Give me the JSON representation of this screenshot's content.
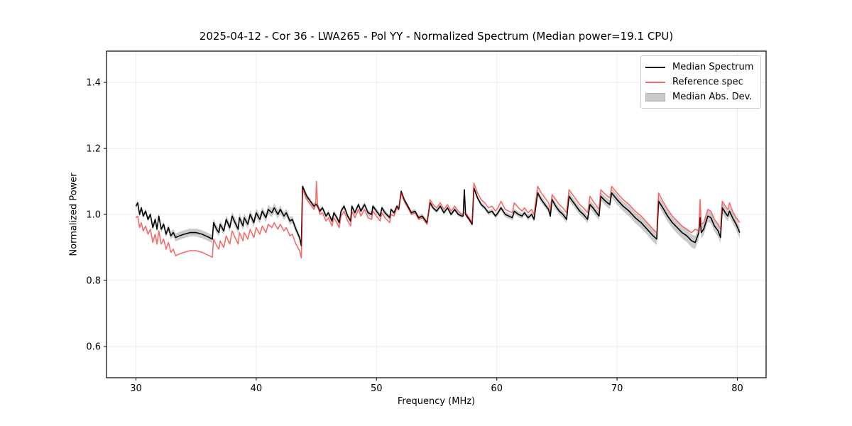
{
  "chart_data": {
    "type": "line",
    "title": "2025-04-12 - Cor 36 - LWA265 - Pol YY - Normalized Spectrum (Median power=19.1 CPU)",
    "xlabel": "Frequency (MHz)",
    "ylabel": "Normalized Power",
    "xlim": [
      27.55,
      82.39
    ],
    "ylim": [
      0.505,
      1.495
    ],
    "xticks": [
      30,
      40,
      50,
      60,
      70,
      80
    ],
    "yticks": [
      0.6,
      0.8,
      1.0,
      1.2,
      1.4
    ],
    "grid": true,
    "grid_color": "#ebebeb",
    "legend_position": "upper right",
    "x_mhz": [
      30.0,
      30.15,
      30.3,
      30.45,
      30.6,
      30.8,
      31.0,
      31.2,
      31.4,
      31.6,
      31.75,
      31.9,
      32.1,
      32.3,
      32.5,
      32.7,
      32.9,
      33.1,
      33.3,
      33.6,
      34.0,
      34.5,
      35.0,
      35.5,
      35.8,
      36.1,
      36.35,
      36.45,
      36.7,
      36.9,
      37.0,
      37.3,
      37.5,
      37.8,
      38.0,
      38.3,
      38.5,
      38.6,
      38.9,
      39.0,
      39.3,
      39.5,
      39.8,
      40.0,
      40.3,
      40.5,
      40.8,
      41.0,
      41.3,
      41.5,
      41.8,
      42.0,
      42.3,
      42.5,
      42.8,
      43.0,
      43.3,
      43.6,
      43.75,
      43.85,
      44.2,
      44.5,
      44.8,
      44.95,
      45.0,
      45.1,
      45.3,
      45.5,
      45.8,
      46.0,
      46.3,
      46.45,
      46.7,
      46.9,
      47.05,
      47.3,
      47.6,
      47.85,
      47.95,
      48.2,
      48.5,
      48.7,
      49.0,
      49.3,
      49.6,
      49.7,
      50.0,
      50.3,
      50.45,
      50.7,
      51.1,
      51.2,
      51.45,
      51.7,
      51.85,
      52.05,
      52.3,
      52.6,
      52.9,
      53.2,
      53.5,
      53.8,
      54.2,
      54.45,
      54.7,
      55.0,
      55.3,
      55.6,
      55.9,
      56.2,
      56.5,
      56.8,
      57.1,
      57.2,
      57.3,
      57.4,
      57.7,
      57.95,
      58.1,
      58.4,
      58.7,
      59.0,
      59.3,
      59.6,
      59.9,
      60.1,
      60.35,
      60.7,
      61.0,
      61.3,
      61.45,
      61.8,
      62.1,
      62.3,
      62.6,
      62.9,
      63.1,
      63.4,
      63.7,
      64.0,
      64.3,
      64.45,
      64.6,
      64.9,
      65.2,
      65.5,
      65.8,
      66.0,
      66.3,
      66.6,
      66.9,
      67.2,
      67.55,
      67.75,
      68.0,
      68.3,
      68.5,
      68.65,
      68.9,
      69.2,
      69.4,
      69.55,
      70.0,
      70.5,
      71.0,
      71.5,
      72.0,
      72.5,
      73.0,
      73.3,
      73.45,
      73.8,
      74.2,
      74.6,
      75.0,
      75.4,
      75.8,
      76.2,
      76.5,
      76.8,
      76.9,
      77.0,
      77.2,
      77.55,
      77.8,
      78.1,
      78.4,
      78.6,
      78.75,
      79.0,
      79.2,
      79.35,
      79.6,
      79.9,
      80.2
    ],
    "series": [
      {
        "name": "Median Spectrum",
        "type": "line",
        "color": "#000000",
        "y": [
          1.025,
          1.035,
          1.0,
          1.02,
          0.995,
          1.01,
          0.985,
          1.0,
          0.96,
          0.985,
          0.955,
          0.995,
          0.955,
          0.97,
          0.94,
          0.96,
          0.935,
          0.945,
          0.93,
          0.935,
          0.94,
          0.945,
          0.945,
          0.94,
          0.935,
          0.93,
          0.925,
          0.975,
          0.955,
          0.945,
          0.97,
          0.95,
          0.985,
          0.96,
          0.995,
          0.97,
          0.955,
          0.99,
          0.965,
          0.99,
          0.97,
          1.0,
          0.975,
          1.005,
          0.985,
          1.01,
          0.99,
          1.015,
          1.005,
          1.02,
          1.0,
          1.015,
          0.995,
          1.005,
          0.98,
          0.985,
          0.955,
          0.93,
          0.905,
          1.085,
          1.055,
          1.04,
          1.025,
          1.03,
          1.03,
          1.025,
          1.01,
          1.02,
          0.995,
          1.005,
          0.98,
          1.005,
          0.99,
          0.975,
          1.01,
          1.025,
          0.995,
          0.98,
          1.025,
          1.005,
          1.03,
          1.01,
          1.03,
          1.005,
          1.0,
          1.025,
          1.01,
          0.995,
          1.02,
          1.005,
          0.99,
          1.015,
          1.005,
          1.025,
          1.015,
          1.07,
          1.045,
          1.025,
          1.005,
          1.01,
          0.99,
          0.995,
          0.975,
          1.035,
          1.02,
          1.01,
          1.025,
          1.005,
          1.02,
          1.0,
          1.015,
          1.0,
          0.995,
          0.995,
          1.075,
          1.0,
          0.985,
          0.97,
          1.08,
          1.05,
          1.03,
          1.02,
          1.005,
          1.01,
          0.995,
          1.005,
          1.02,
          1.0,
          0.995,
          0.99,
          1.01,
          1.0,
          0.995,
          1.005,
          0.99,
          1.0,
          0.985,
          1.065,
          1.045,
          1.03,
          1.015,
          0.995,
          1.045,
          1.025,
          1.01,
          1.0,
          0.985,
          1.055,
          1.04,
          1.025,
          1.01,
          1.0,
          0.985,
          1.03,
          1.02,
          1.005,
          0.995,
          1.055,
          1.045,
          1.035,
          1.03,
          1.065,
          1.045,
          1.025,
          1.01,
          0.99,
          0.975,
          0.955,
          0.935,
          0.925,
          1.04,
          1.02,
          0.995,
          0.975,
          0.96,
          0.945,
          0.935,
          0.92,
          0.915,
          0.945,
          0.99,
          0.945,
          0.955,
          0.995,
          0.99,
          0.965,
          0.95,
          0.93,
          1.02,
          1.005,
          0.995,
          1.01,
          0.99,
          0.97,
          0.945
        ]
      },
      {
        "name": "Reference spec",
        "type": "line",
        "color": "#f56a6a",
        "y": [
          0.99,
          0.995,
          0.96,
          0.975,
          0.95,
          0.965,
          0.94,
          0.955,
          0.915,
          0.94,
          0.91,
          0.95,
          0.91,
          0.925,
          0.895,
          0.915,
          0.885,
          0.895,
          0.875,
          0.88,
          0.885,
          0.89,
          0.89,
          0.885,
          0.88,
          0.875,
          0.87,
          0.925,
          0.905,
          0.895,
          0.92,
          0.9,
          0.935,
          0.91,
          0.95,
          0.925,
          0.91,
          0.945,
          0.92,
          0.945,
          0.925,
          0.955,
          0.93,
          0.96,
          0.94,
          0.965,
          0.945,
          0.97,
          0.96,
          0.975,
          0.955,
          0.97,
          0.95,
          0.96,
          0.935,
          0.94,
          0.91,
          0.89,
          0.868,
          1.075,
          1.045,
          1.03,
          1.015,
          1.04,
          1.1,
          1.03,
          1.0,
          1.005,
          0.98,
          0.99,
          0.965,
          0.99,
          0.975,
          0.96,
          0.995,
          1.01,
          0.98,
          0.965,
          1.01,
          0.99,
          1.015,
          0.995,
          1.015,
          0.99,
          0.985,
          1.01,
          0.995,
          0.98,
          1.005,
          0.99,
          0.975,
          1.0,
          0.995,
          1.02,
          1.015,
          1.065,
          1.04,
          1.02,
          1.0,
          1.005,
          0.985,
          0.99,
          0.97,
          1.045,
          1.03,
          1.02,
          1.035,
          1.015,
          1.03,
          1.01,
          1.025,
          1.01,
          1.0,
          1.002,
          1.005,
          1.005,
          0.99,
          0.975,
          1.095,
          1.065,
          1.045,
          1.035,
          1.02,
          1.025,
          1.01,
          1.02,
          1.04,
          1.015,
          1.01,
          1.005,
          1.035,
          1.02,
          1.01,
          1.02,
          1.005,
          1.015,
          1.0,
          1.085,
          1.065,
          1.05,
          1.035,
          1.015,
          1.06,
          1.045,
          1.03,
          1.02,
          1.005,
          1.075,
          1.06,
          1.045,
          1.03,
          1.02,
          1.005,
          1.055,
          1.04,
          1.025,
          1.015,
          1.075,
          1.065,
          1.055,
          1.05,
          1.085,
          1.065,
          1.045,
          1.03,
          1.01,
          0.995,
          0.975,
          0.955,
          0.945,
          1.065,
          1.04,
          1.015,
          0.995,
          0.98,
          0.965,
          0.955,
          0.945,
          0.955,
          0.95,
          1.045,
          0.97,
          0.975,
          1.015,
          1.01,
          0.985,
          0.97,
          0.955,
          1.04,
          1.025,
          1.015,
          1.035,
          1.01,
          0.99,
          0.975
        ]
      },
      {
        "name": "Median Abs. Dev.",
        "type": "band",
        "around": "Median Spectrum",
        "color": "#c9c9c9",
        "half_width": [
          0.008,
          0.008,
          0.008,
          0.008,
          0.008,
          0.008,
          0.008,
          0.008,
          0.009,
          0.009,
          0.009,
          0.009,
          0.01,
          0.01,
          0.01,
          0.01,
          0.011,
          0.011,
          0.012,
          0.012,
          0.012,
          0.012,
          0.012,
          0.012,
          0.012,
          0.012,
          0.012,
          0.012,
          0.012,
          0.012,
          0.012,
          0.012,
          0.013,
          0.013,
          0.013,
          0.013,
          0.013,
          0.013,
          0.013,
          0.013,
          0.013,
          0.013,
          0.013,
          0.013,
          0.013,
          0.013,
          0.013,
          0.014,
          0.014,
          0.014,
          0.013,
          0.013,
          0.012,
          0.012,
          0.012,
          0.011,
          0.011,
          0.01,
          0.01,
          0.008,
          0.008,
          0.008,
          0.008,
          0.008,
          0.008,
          0.008,
          0.008,
          0.008,
          0.008,
          0.008,
          0.008,
          0.008,
          0.008,
          0.008,
          0.008,
          0.008,
          0.008,
          0.008,
          0.008,
          0.008,
          0.008,
          0.008,
          0.008,
          0.008,
          0.008,
          0.008,
          0.008,
          0.008,
          0.008,
          0.008,
          0.007,
          0.007,
          0.007,
          0.007,
          0.007,
          0.007,
          0.007,
          0.007,
          0.007,
          0.007,
          0.007,
          0.007,
          0.007,
          0.007,
          0.007,
          0.006,
          0.006,
          0.006,
          0.006,
          0.006,
          0.006,
          0.006,
          0.006,
          0.006,
          0.006,
          0.006,
          0.006,
          0.006,
          0.007,
          0.007,
          0.007,
          0.007,
          0.007,
          0.007,
          0.007,
          0.008,
          0.008,
          0.008,
          0.008,
          0.008,
          0.008,
          0.008,
          0.008,
          0.008,
          0.008,
          0.008,
          0.009,
          0.01,
          0.01,
          0.01,
          0.01,
          0.01,
          0.01,
          0.011,
          0.011,
          0.011,
          0.011,
          0.012,
          0.012,
          0.012,
          0.012,
          0.012,
          0.012,
          0.013,
          0.013,
          0.013,
          0.013,
          0.013,
          0.013,
          0.014,
          0.014,
          0.014,
          0.015,
          0.015,
          0.016,
          0.016,
          0.017,
          0.017,
          0.018,
          0.018,
          0.016,
          0.016,
          0.017,
          0.017,
          0.018,
          0.018,
          0.019,
          0.02,
          0.02,
          0.019,
          0.018,
          0.018,
          0.018,
          0.017,
          0.017,
          0.017,
          0.018,
          0.018,
          0.016,
          0.016,
          0.016,
          0.016,
          0.016,
          0.017,
          0.017
        ]
      }
    ]
  }
}
